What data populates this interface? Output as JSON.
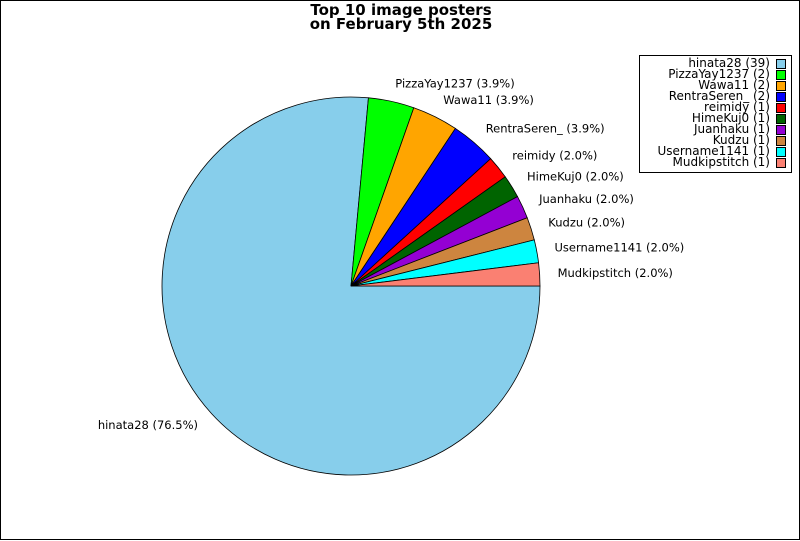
{
  "chart_data": {
    "type": "pie",
    "title": [
      "Top 10 image posters",
      "on February 5th 2025"
    ],
    "legend_placement": "top-right",
    "slices": [
      {
        "name": "hinata28",
        "count": 39,
        "percent": 76.5,
        "color": "#87ceeb",
        "legend": "hinata28 (39)",
        "label": "hinata28 (76.5%)"
      },
      {
        "name": "PizzaYay1237",
        "count": 2,
        "percent": 3.9,
        "color": "#00ff00",
        "legend": "PizzaYay1237 (2)",
        "label": "PizzaYay1237 (3.9%)"
      },
      {
        "name": "Wawa11",
        "count": 2,
        "percent": 3.9,
        "color": "#ffa500",
        "legend": "Wawa11 (2)",
        "label": "Wawa11 (3.9%)"
      },
      {
        "name": "RentraSeren_",
        "count": 2,
        "percent": 3.9,
        "color": "#0000ff",
        "legend": "RentraSeren_ (2)",
        "label": "RentraSeren_ (3.9%)"
      },
      {
        "name": "reimidy",
        "count": 1,
        "percent": 2.0,
        "color": "#ff0000",
        "legend": "reimidy (1)",
        "label": "reimidy (2.0%)"
      },
      {
        "name": "HimeKuj0",
        "count": 1,
        "percent": 2.0,
        "color": "#006400",
        "legend": "HimeKuj0 (1)",
        "label": "HimeKuj0 (2.0%)"
      },
      {
        "name": "Juanhaku",
        "count": 1,
        "percent": 2.0,
        "color": "#9400d3",
        "legend": "Juanhaku (1)",
        "label": "Juanhaku (2.0%)"
      },
      {
        "name": "Kudzu",
        "count": 1,
        "percent": 2.0,
        "color": "#cd853f",
        "legend": "Kudzu (1)",
        "label": "Kudzu (2.0%)"
      },
      {
        "name": "Username1141",
        "count": 1,
        "percent": 2.0,
        "color": "#00ffff",
        "legend": "Username1141 (1)",
        "label": "Username1141 (2.0%)"
      },
      {
        "name": "Mudkipstitch",
        "count": 1,
        "percent": 2.0,
        "color": "#fa8072",
        "legend": "Mudkipstitch (1)",
        "label": "Mudkipstitch (2.0%)"
      }
    ]
  }
}
